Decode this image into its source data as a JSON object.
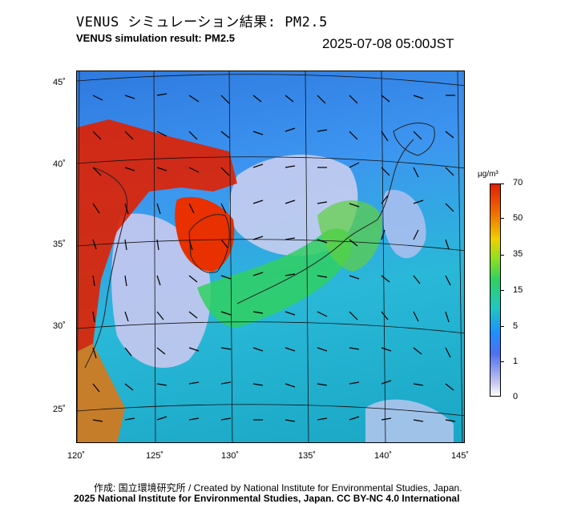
{
  "header": {
    "title_jp": "VENUS シミュレーション結果: PM2.5",
    "title_en": "VENUS simulation result: PM2.5",
    "timestamp": "2025-07-08 05:00JST"
  },
  "map": {
    "lat_labels": [
      "45˚",
      "40˚",
      "35˚",
      "30˚",
      "25˚"
    ],
    "lon_labels": [
      "120˚",
      "125˚",
      "130˚",
      "135˚",
      "140˚",
      "145˚"
    ],
    "colors": {
      "high": "#e02000",
      "mid_high": "#f07000",
      "mid": "#30d060",
      "low": "#1e90ff",
      "very_low": "#c8c8f0"
    }
  },
  "colorbar": {
    "unit": "μg/m³",
    "labels": [
      "70",
      "50",
      "35",
      "15",
      "5",
      "1",
      "0"
    ]
  },
  "footer": {
    "credit_jp_en": "作成: 国立環境研究所 / Created by National Institute for Environmental Studies, Japan.",
    "license": "2025 National Institute for Environmental Studies, Japan. CC BY-NC 4.0 International"
  }
}
